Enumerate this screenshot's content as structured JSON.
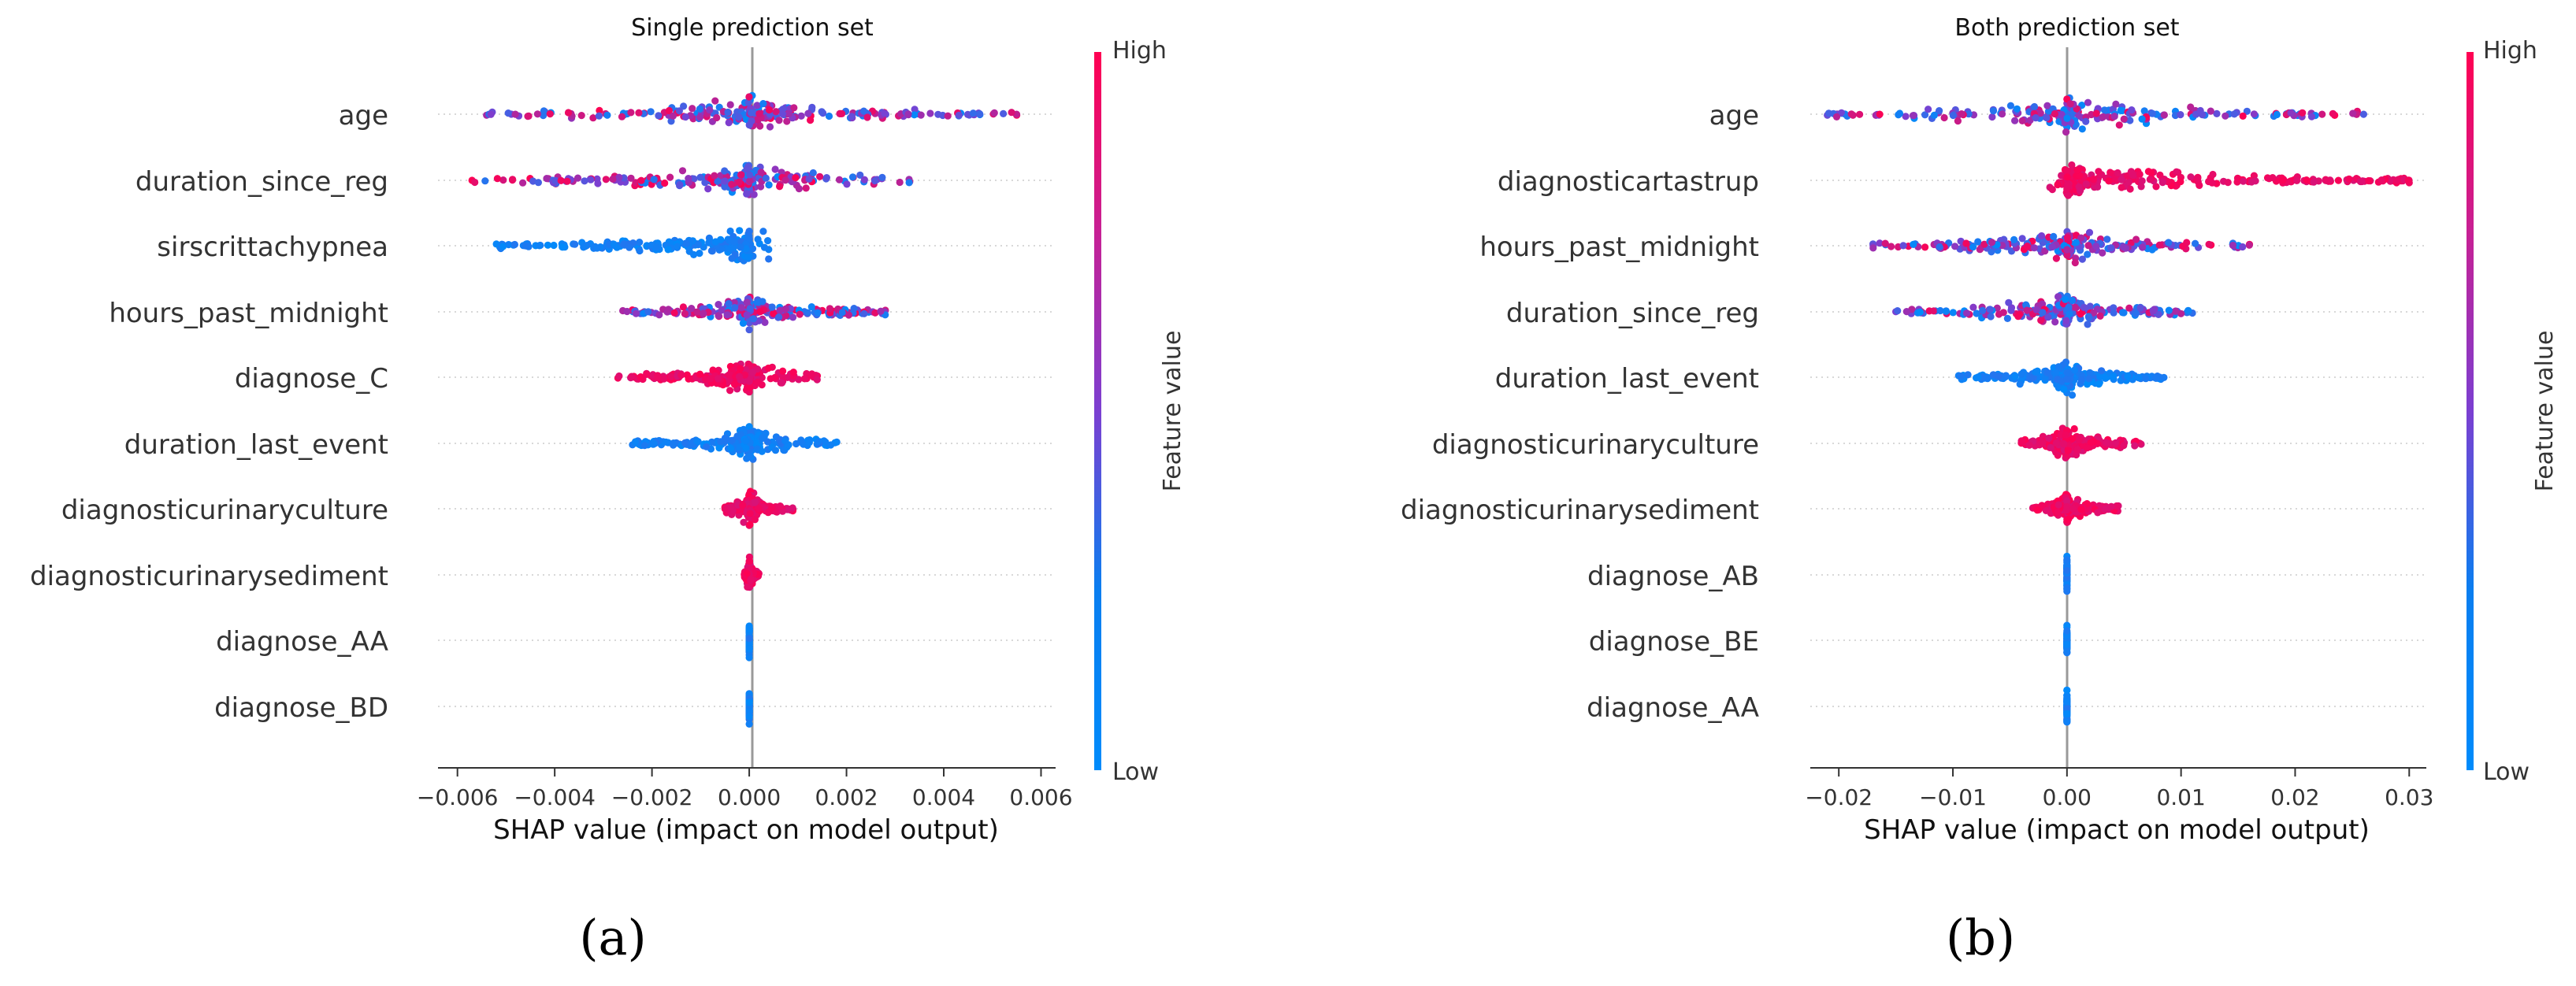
{
  "chart_data": [
    {
      "type": "scatter",
      "subtype": "shap-beeswarm",
      "panel_label": "(a)",
      "title": "Single prediction set",
      "xlabel": "SHAP value (impact on model output)",
      "xlim": [
        -0.0064,
        0.0063
      ],
      "xticks": [
        -0.006,
        -0.004,
        -0.002,
        0.0,
        0.002,
        0.004,
        0.006
      ],
      "xtick_labels": [
        "−0.006",
        "−0.004",
        "−0.002",
        "0.000",
        "0.002",
        "0.004",
        "0.006"
      ],
      "colorbar": {
        "label": "Feature value",
        "high": "High",
        "low": "Low"
      },
      "features": [
        {
          "name": "age",
          "min": -0.0054,
          "max": 0.0055,
          "color": "mixed"
        },
        {
          "name": "duration_since_reg",
          "min": -0.0057,
          "max": 0.0033,
          "color": "mixed"
        },
        {
          "name": "sirscrittachypnea",
          "min": -0.0052,
          "max": 0.0004,
          "color": "low"
        },
        {
          "name": "hours_past_midnight",
          "min": -0.0026,
          "max": 0.0028,
          "color": "mixed"
        },
        {
          "name": "diagnose_C",
          "min": -0.0027,
          "max": 0.0014,
          "color": "high"
        },
        {
          "name": "duration_last_event",
          "min": -0.0024,
          "max": 0.0018,
          "color": "low"
        },
        {
          "name": "diagnosticurinaryculture",
          "min": -0.0005,
          "max": 0.0009,
          "color": "high"
        },
        {
          "name": "diagnosticurinarysediment",
          "min": -0.0001,
          "max": 0.0002,
          "color": "high"
        },
        {
          "name": "diagnose_AA",
          "min": 0.0,
          "max": 0.0,
          "color": "low"
        },
        {
          "name": "diagnose_BD",
          "min": 0.0,
          "max": 0.0,
          "color": "low"
        }
      ]
    },
    {
      "type": "scatter",
      "subtype": "shap-beeswarm",
      "panel_label": "(b)",
      "title": "Both prediction set",
      "xlabel": "SHAP value (impact on model output)",
      "xlim": [
        -0.0225,
        0.0315
      ],
      "xticks": [
        -0.02,
        -0.01,
        0.0,
        0.01,
        0.02,
        0.03
      ],
      "xtick_labels": [
        "−0.02",
        "−0.01",
        "0.00",
        "0.01",
        "0.02",
        "0.03"
      ],
      "colorbar": {
        "label": "Feature value",
        "high": "High",
        "low": "Low"
      },
      "features": [
        {
          "name": "age",
          "min": -0.021,
          "max": 0.026,
          "color": "mixed"
        },
        {
          "name": "diagnosticartastrup",
          "min": -0.0015,
          "max": 0.03,
          "color": "high"
        },
        {
          "name": "hours_past_midnight",
          "min": -0.017,
          "max": 0.016,
          "color": "mixed"
        },
        {
          "name": "duration_since_reg",
          "min": -0.015,
          "max": 0.011,
          "color": "mixed"
        },
        {
          "name": "duration_last_event",
          "min": -0.0095,
          "max": 0.0085,
          "color": "low"
        },
        {
          "name": "diagnosticurinaryculture",
          "min": -0.004,
          "max": 0.0065,
          "color": "high"
        },
        {
          "name": "diagnosticurinarysediment",
          "min": -0.003,
          "max": 0.0045,
          "color": "high"
        },
        {
          "name": "diagnose_AB",
          "min": 0.0,
          "max": 0.0,
          "color": "low"
        },
        {
          "name": "diagnose_BE",
          "min": 0.0,
          "max": 0.0,
          "color": "low"
        },
        {
          "name": "diagnose_AA",
          "min": 0.0,
          "max": 0.0,
          "color": "low"
        }
      ]
    }
  ],
  "colors": {
    "high": "#ff0052",
    "low": "#008bfb",
    "mid": "#7b3fd1",
    "axis": "#333333",
    "gridline": "#cccccc"
  }
}
